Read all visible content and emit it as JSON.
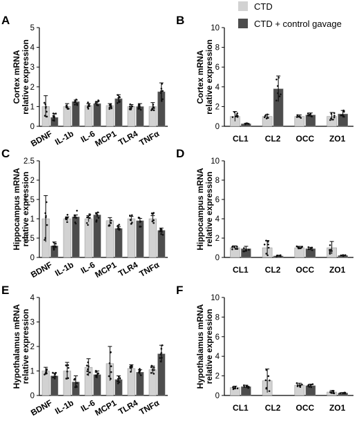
{
  "colors": {
    "ctd": "#d2d2d2",
    "gavage": "#4d4d4d",
    "dot": "#111111"
  },
  "legend": [
    {
      "label": "CTD",
      "color": "#d2d2d2"
    },
    {
      "label": "CTD + control gavage",
      "color": "#4d4d4d"
    }
  ],
  "chart_data": [
    {
      "type": "bar",
      "panel": "A",
      "ylabel": [
        "Cortex mRNA",
        "relative expression"
      ],
      "ylim": [
        0,
        5
      ],
      "yticks": [
        0,
        1,
        2,
        3,
        4,
        5
      ],
      "xtick_rotate": true,
      "categories": [
        "BDNF",
        "IL-1b",
        "IL-6",
        "MCP1",
        "TLR4",
        "TNFα"
      ],
      "series": [
        {
          "name": "CTD",
          "values": [
            1.0,
            1.0,
            1.05,
            1.05,
            1.0,
            1.0
          ],
          "errors": [
            0.55,
            0.15,
            0.1,
            0.1,
            0.1,
            0.2
          ]
        },
        {
          "name": "CTD + control gavage",
          "values": [
            0.45,
            1.25,
            1.15,
            1.4,
            1.0,
            1.75
          ],
          "errors": [
            0.2,
            0.08,
            0.1,
            0.2,
            0.15,
            0.45
          ]
        }
      ]
    },
    {
      "type": "bar",
      "panel": "B",
      "ylabel": [
        "Cortex mRNA",
        "relative expression"
      ],
      "ylim": [
        0,
        10
      ],
      "yticks": [
        0,
        2,
        4,
        6,
        8,
        10
      ],
      "xtick_rotate": false,
      "categories": [
        "CL1",
        "CL2",
        "OCC",
        "ZO1"
      ],
      "series": [
        {
          "name": "CTD",
          "values": [
            1.0,
            1.0,
            1.0,
            1.0
          ],
          "errors": [
            0.5,
            0.2,
            0.15,
            0.4
          ]
        },
        {
          "name": "CTD + control gavage",
          "values": [
            0.25,
            3.8,
            1.15,
            1.25
          ],
          "errors": [
            0.05,
            1.3,
            0.2,
            0.35
          ]
        }
      ]
    },
    {
      "type": "bar",
      "panel": "C",
      "ylabel": [
        "Hippocampus mRNA",
        "relative expression"
      ],
      "ylim": [
        0,
        2.5
      ],
      "yticks": [
        0,
        0.5,
        1,
        1.5,
        2,
        2.5
      ],
      "xtick_rotate": true,
      "categories": [
        "BDNF",
        "IL-1b",
        "IL-6",
        "MCP1",
        "TLR4",
        "TNFα"
      ],
      "series": [
        {
          "name": "CTD",
          "values": [
            1.0,
            1.0,
            1.0,
            0.95,
            1.0,
            1.0
          ],
          "errors": [
            0.6,
            0.05,
            0.08,
            0.08,
            0.06,
            0.08
          ]
        },
        {
          "name": "CTD + control gavage",
          "values": [
            0.3,
            1.05,
            1.1,
            0.75,
            0.95,
            0.7
          ],
          "errors": [
            0.1,
            0.05,
            0.06,
            0.05,
            0.06,
            0.06
          ]
        }
      ]
    },
    {
      "type": "bar",
      "panel": "D",
      "ylabel": [
        "Hippocampus mRNA",
        "relative expression"
      ],
      "ylim": [
        0,
        10
      ],
      "yticks": [
        0,
        2,
        4,
        6,
        8,
        10
      ],
      "xtick_rotate": false,
      "categories": [
        "CL1",
        "CL2",
        "OCC",
        "ZO1"
      ],
      "series": [
        {
          "name": "CTD",
          "values": [
            1.0,
            1.0,
            1.0,
            1.0
          ],
          "errors": [
            0.2,
            0.75,
            0.15,
            0.65
          ]
        },
        {
          "name": "CTD + control gavage",
          "values": [
            0.9,
            0.15,
            0.9,
            0.2
          ],
          "errors": [
            0.25,
            0.08,
            0.15,
            0.05
          ]
        }
      ]
    },
    {
      "type": "bar",
      "panel": "E",
      "ylabel": [
        "Hypothalamus mRNA",
        "relative expression"
      ],
      "ylim": [
        0,
        4
      ],
      "yticks": [
        0,
        1,
        2,
        3,
        4
      ],
      "xtick_rotate": true,
      "categories": [
        "BDNF",
        "IL-1b",
        "IL-6",
        "MCP1",
        "TLR4",
        "TNFα"
      ],
      "series": [
        {
          "name": "CTD",
          "values": [
            1.0,
            1.0,
            1.15,
            1.3,
            1.1,
            1.05
          ],
          "errors": [
            0.15,
            0.35,
            0.35,
            0.7,
            0.15,
            0.15
          ]
        },
        {
          "name": "CTD + control gavage",
          "values": [
            0.8,
            0.55,
            0.85,
            0.65,
            0.95,
            1.7
          ],
          "errors": [
            0.1,
            0.25,
            0.15,
            0.15,
            0.1,
            0.35
          ]
        }
      ]
    },
    {
      "type": "bar",
      "panel": "F",
      "ylabel": [
        "Hypothalamus mRNA",
        "relative expression"
      ],
      "ylim": [
        0,
        10
      ],
      "yticks": [
        0,
        2,
        4,
        6,
        8,
        10
      ],
      "xtick_rotate": false,
      "categories": [
        "CL1",
        "CL2",
        "OCC",
        "ZO1"
      ],
      "series": [
        {
          "name": "CTD",
          "values": [
            0.8,
            1.5,
            1.05,
            0.35
          ],
          "errors": [
            0.15,
            1.2,
            0.2,
            0.15
          ]
        },
        {
          "name": "CTD + control gavage",
          "values": [
            0.9,
            0.0,
            1.0,
            0.25
          ],
          "errors": [
            0.15,
            0.0,
            0.15,
            0.05
          ]
        }
      ]
    }
  ]
}
